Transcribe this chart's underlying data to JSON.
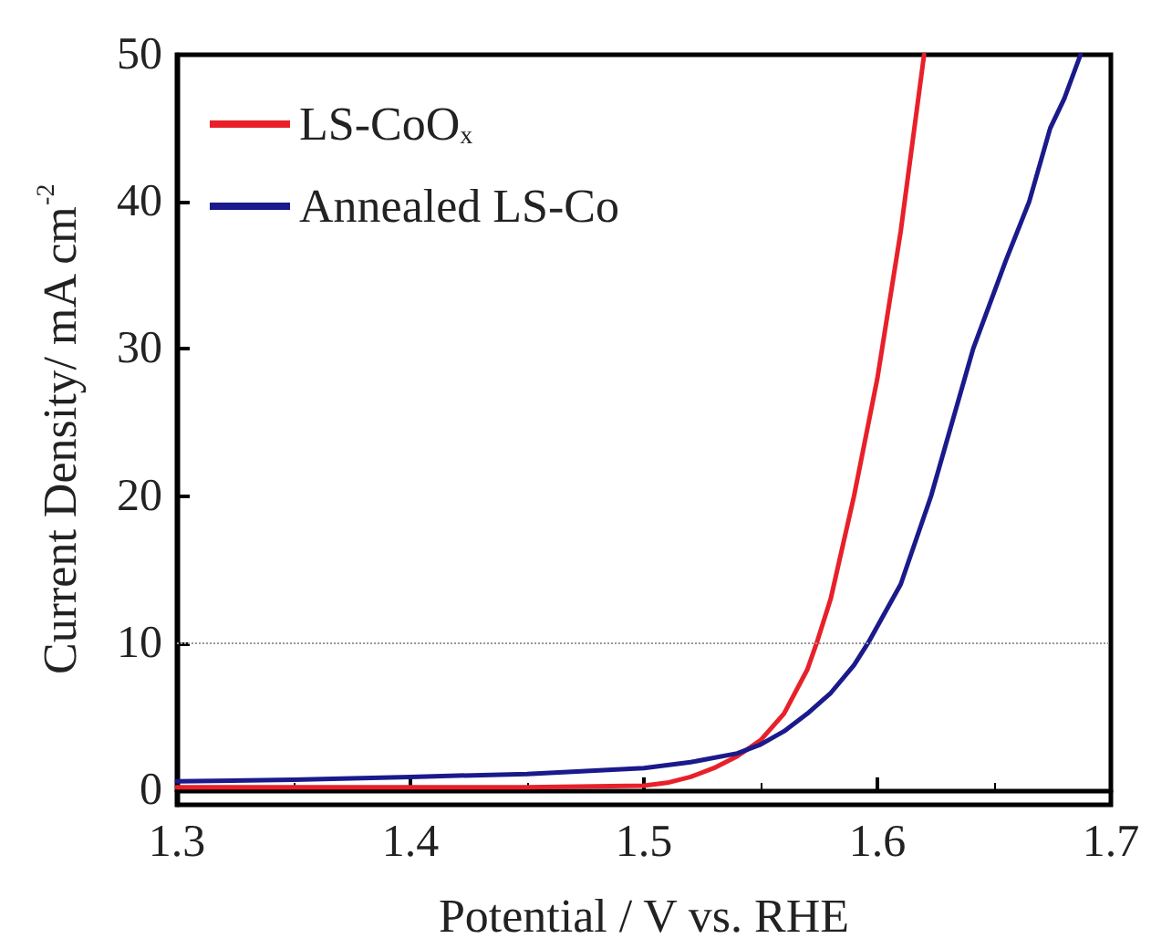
{
  "chart_data": {
    "type": "line",
    "xlabel": "Potential / V vs. RHE",
    "ylabel": "Current Density/ mA cm$^{-2}$",
    "xlim": [
      1.3,
      1.7
    ],
    "xticks": [
      1.3,
      1.4,
      1.5,
      1.6,
      1.7
    ],
    "ylim": [
      -1,
      50
    ],
    "yticks": [
      0,
      10,
      20,
      30,
      40,
      50
    ],
    "legend": "top left",
    "grid": false,
    "marker": "none",
    "line_style": "solid",
    "ref_lines": [
      {
        "axis": "y",
        "value": 10,
        "color": "#999999",
        "line_style": "dotted"
      }
    ],
    "series": [
      {
        "name": "LS-CoO$_{x}$",
        "color": "#e8202a",
        "x": [
          1.3,
          1.35,
          1.4,
          1.45,
          1.5,
          1.51,
          1.52,
          1.53,
          1.54,
          1.55,
          1.56,
          1.57,
          1.574,
          1.58,
          1.59,
          1.6,
          1.61,
          1.62
        ],
        "values": [
          0.2,
          0.2,
          0.2,
          0.2,
          0.3,
          0.5,
          0.9,
          1.5,
          2.3,
          3.4,
          5.2,
          8.2,
          10,
          13,
          20,
          28,
          38,
          50
        ]
      },
      {
        "name": "Annealed LS-Co",
        "color": "#1a1a8c",
        "x": [
          1.3,
          1.35,
          1.4,
          1.45,
          1.5,
          1.52,
          1.54,
          1.55,
          1.56,
          1.57,
          1.58,
          1.59,
          1.596,
          1.61,
          1.623,
          1.641,
          1.655,
          1.665,
          1.674,
          1.68,
          1.687
        ],
        "values": [
          0.6,
          0.7,
          0.9,
          1.1,
          1.5,
          1.9,
          2.5,
          3.1,
          4.0,
          5.2,
          6.6,
          8.5,
          10,
          14,
          20,
          30,
          36,
          40,
          45,
          47,
          50
        ]
      }
    ]
  }
}
